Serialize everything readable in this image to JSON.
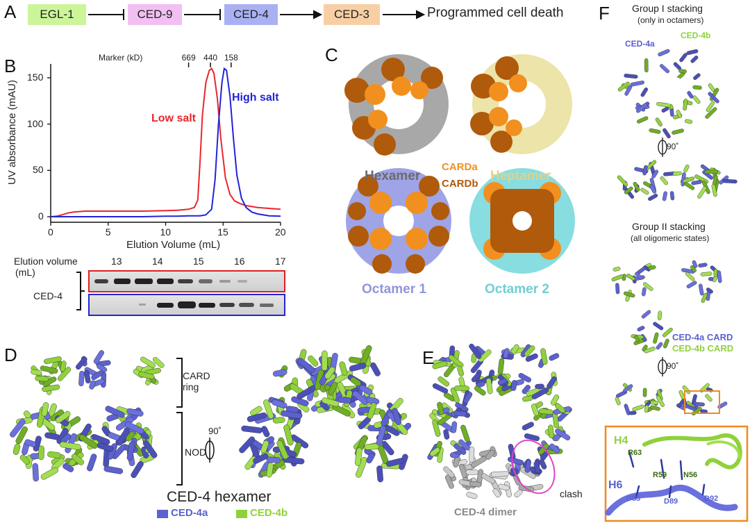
{
  "panels": {
    "a": "A",
    "b": "B",
    "c": "C",
    "d": "D",
    "e": "E",
    "f": "F"
  },
  "pathway": {
    "nodes": [
      {
        "label": "EGL-1",
        "color": "#ccf59a"
      },
      {
        "label": "CED-9",
        "color": "#f2bff2"
      },
      {
        "label": "CED-4",
        "color": "#a9b1f2"
      },
      {
        "label": "CED-3",
        "color": "#f8cfa5"
      }
    ],
    "end": "Programmed cell death"
  },
  "panel_b": {
    "marker_title": "Marker (kD)",
    "markers": [
      {
        "label": "669",
        "x": 12.0
      },
      {
        "label": "440",
        "x": 13.9
      },
      {
        "label": "158",
        "x": 15.7
      }
    ],
    "low_salt": "Low salt",
    "high_salt": "High salt",
    "gel_title": "Elution volume",
    "gel_unit": "(mL)",
    "gel_fractions": [
      "13",
      "14",
      "15",
      "16",
      "17"
    ],
    "gel_protein": "CED-4"
  },
  "chart_data": {
    "type": "line",
    "xlabel": "Elution Volume (mL)",
    "ylabel": "UV absorbance (mAU)",
    "xlim": [
      0,
      20
    ],
    "ylim": [
      0,
      165
    ],
    "xticks": [
      0,
      5,
      10,
      15,
      20
    ],
    "yticks": [
      0,
      50,
      100,
      150
    ],
    "series": [
      {
        "name": "Low salt",
        "color": "#e8262a",
        "x": [
          0,
          0.5,
          1,
          1.5,
          2,
          3,
          5,
          8,
          10,
          11,
          12,
          12.5,
          12.8,
          13.0,
          13.2,
          13.5,
          13.8,
          14.0,
          14.2,
          14.5,
          14.8,
          15.2,
          15.6,
          16,
          16.5,
          17,
          18,
          19,
          20
        ],
        "y": [
          0,
          0.5,
          2,
          4,
          5,
          6,
          6,
          6,
          6.5,
          7,
          8,
          10,
          18,
          60,
          110,
          145,
          158,
          160,
          155,
          128,
          85,
          42,
          24,
          17,
          14,
          12,
          10,
          9,
          8
        ]
      },
      {
        "name": "High salt",
        "color": "#2222d8",
        "x": [
          0,
          1,
          2,
          5,
          8,
          10,
          11,
          12,
          13,
          13.5,
          14.0,
          14.3,
          14.6,
          14.9,
          15.1,
          15.3,
          15.6,
          15.9,
          16.2,
          16.6,
          17,
          17.5,
          18,
          19,
          20
        ],
        "y": [
          0,
          0,
          0,
          0,
          0,
          0.5,
          0.5,
          1,
          1,
          2,
          8,
          40,
          100,
          145,
          160,
          158,
          130,
          85,
          45,
          20,
          10,
          5,
          3,
          1,
          0.5
        ]
      }
    ]
  },
  "panel_c": {
    "hexamer": "Hexamer",
    "heptamer": "Heptamer",
    "octamer1": "Octamer 1",
    "octamer2": "Octamer 2",
    "carda": "CARDa",
    "cardb": "CARDb"
  },
  "panel_d": {
    "card_ring": "CARD ring",
    "rotation": "90˚",
    "nod": "NOD",
    "title": "CED-4 hexamer",
    "legend_a": "CED-4a",
    "legend_b": "CED-4b",
    "color_a": "#5b61cf",
    "color_b": "#8fd13a"
  },
  "panel_e": {
    "dimer": "CED-4 dimer",
    "clash": "clash"
  },
  "panel_f": {
    "group1_title": "Group I stacking",
    "group1_sub": "(only in octamers)",
    "ced4a": "CED-4a",
    "ced4b": "CED-4b",
    "rotation": "90˚",
    "group2_title": "Group II stacking",
    "group2_sub": "(all oligomeric states)",
    "card_a": "CED-4a CARD",
    "card_b": "CED-4b CARD",
    "zoom": {
      "h4": "H4",
      "h6": "H6",
      "residues": [
        "R63",
        "R59",
        "N56",
        "D85",
        "D89",
        "D92"
      ]
    }
  }
}
